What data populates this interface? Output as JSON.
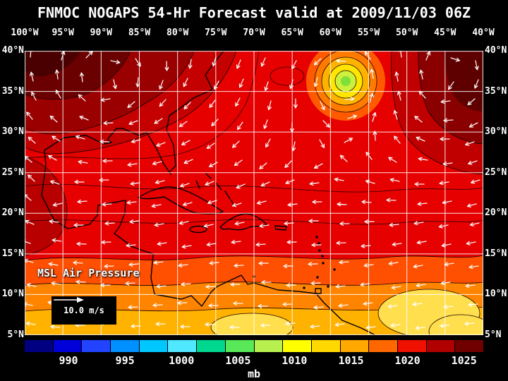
{
  "title": "FNMOC NOGAPS 54-Hr Forecast valid at 2009/11/03 06Z",
  "map": {
    "lon_labels": [
      "100°W",
      "95°W",
      "90°W",
      "85°W",
      "80°W",
      "75°W",
      "70°W",
      "65°W",
      "60°W",
      "55°W",
      "50°W",
      "45°W",
      "40°W"
    ],
    "lat_labels": [
      "40°N",
      "35°N",
      "30°N",
      "25°N",
      "20°N",
      "15°N",
      "10°N",
      "5°N"
    ],
    "field_label": "MSL Air Pressure",
    "wind_scale_label": "10.0 m/s"
  },
  "colorbar": {
    "unit": "mb",
    "tick_labels": [
      "990",
      "995",
      "1000",
      "1005",
      "1010",
      "1015",
      "1020",
      "1025"
    ],
    "segment_colors": [
      "#000080",
      "#0000d8",
      "#2244ff",
      "#0090ff",
      "#00c8ff",
      "#50e8ff",
      "#00d890",
      "#58e858",
      "#b8f050",
      "#ffff00",
      "#ffd800",
      "#ffa800",
      "#ff6800",
      "#f01000",
      "#b00000",
      "#700000"
    ]
  },
  "colors": {
    "background": "#000000",
    "text": "#ffffff",
    "grid": "#ffffff",
    "coastline": "#000000"
  },
  "chart_data": {
    "type": "heatmap",
    "title": "FNMOC NOGAPS 54-Hr Forecast valid at 2009/11/03 06Z",
    "variable": "MSL Air Pressure",
    "unit": "mb",
    "x_tick_labels": [
      "100°W",
      "95°W",
      "90°W",
      "85°W",
      "80°W",
      "75°W",
      "70°W",
      "65°W",
      "60°W",
      "55°W",
      "50°W",
      "45°W",
      "40°W"
    ],
    "y_tick_labels": [
      "40°N",
      "35°N",
      "30°N",
      "25°N",
      "20°N",
      "15°N",
      "10°N",
      "5°N"
    ],
    "colorbar_ticks": [
      990,
      995,
      1000,
      1005,
      1010,
      1015,
      1020,
      1025
    ],
    "wind_reference": "10.0 m/s",
    "notes": "Filled pressure contours: high pressure (dark red ~1022-1026 mb) over NW and NE corners, broad red ~1016-1020 mb mid-latitudes, orange-yellow ~1008-1014 mb across the tropics, tropical cyclone with closed low (~996-1004 mb) near 55W 37N with concentric contour rings; white wind vectors overlaid"
  }
}
